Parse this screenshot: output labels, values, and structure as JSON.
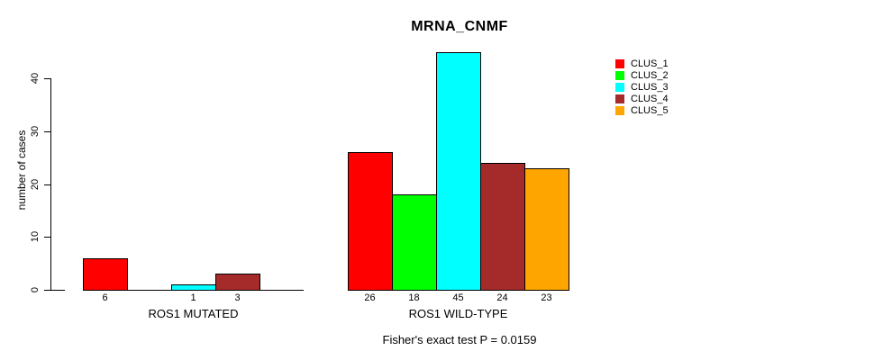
{
  "chart_data": {
    "type": "bar",
    "title": "MRNA_CNMF",
    "ylabel": "number of cases",
    "annotation": "Fisher's exact test P = 0.0159",
    "series": [
      {
        "name": "CLUS_1",
        "color": "#FF0000"
      },
      {
        "name": "CLUS_2",
        "color": "#00FF00"
      },
      {
        "name": "CLUS_3",
        "color": "#00FFFF"
      },
      {
        "name": "CLUS_4",
        "color": "#A52A2A"
      },
      {
        "name": "CLUS_5",
        "color": "#FFA500"
      }
    ],
    "groups": [
      {
        "label": "ROS1 MUTATED",
        "values": [
          6,
          0,
          1,
          3,
          0
        ],
        "bar_labels": [
          "6",
          "",
          "1",
          "3",
          ""
        ]
      },
      {
        "label": "ROS1 WILD-TYPE",
        "values": [
          26,
          18,
          45,
          24,
          23
        ],
        "bar_labels": [
          "26",
          "18",
          "45",
          "24",
          "23"
        ]
      }
    ],
    "yticks": [
      0,
      10,
      20,
      30,
      40
    ],
    "ylim": [
      0,
      45
    ],
    "legend_position": "right",
    "grid": false,
    "bar_border_color": "#000000"
  }
}
